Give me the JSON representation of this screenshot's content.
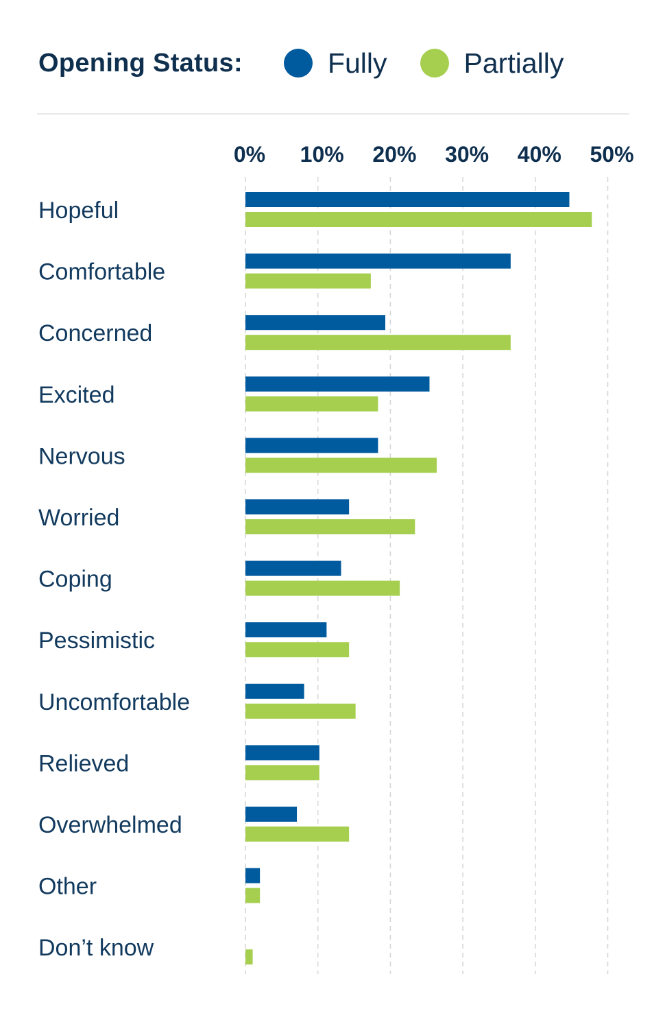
{
  "legend": {
    "title": "Opening Status:",
    "fully_label": "Fully",
    "partially_label": "Partially"
  },
  "colors": {
    "fully": "#005a9e",
    "partially": "#a6cf4f",
    "grid": "#d4d4d4",
    "text": "#0f2f4f"
  },
  "chart_data": {
    "type": "bar",
    "orientation": "horizontal",
    "title": "",
    "xlabel": "",
    "ylabel": "",
    "xlim": [
      0,
      50
    ],
    "ticks": [
      0,
      10,
      20,
      30,
      40,
      50
    ],
    "tick_labels": [
      "0%",
      "10%",
      "20%",
      "30%",
      "40%",
      "50%"
    ],
    "grid": true,
    "legend_position": "top",
    "categories": [
      "Hopeful",
      "Comfortable",
      "Concerned",
      "Excited",
      "Nervous",
      "Worried",
      "Coping",
      "Pessimistic",
      "Uncomfortable",
      "Relieved",
      "Overwhelmed",
      "Other",
      "Don’t know"
    ],
    "series": [
      {
        "name": "Fully",
        "values": [
          44.7,
          36.6,
          19.3,
          25.4,
          18.3,
          14.3,
          13.2,
          11.2,
          8.1,
          10.2,
          7.1,
          2.0,
          0
        ]
      },
      {
        "name": "Partially",
        "values": [
          47.8,
          17.3,
          36.6,
          18.3,
          26.4,
          23.4,
          21.3,
          14.3,
          15.2,
          10.2,
          14.3,
          2.0,
          1.0
        ]
      }
    ]
  }
}
